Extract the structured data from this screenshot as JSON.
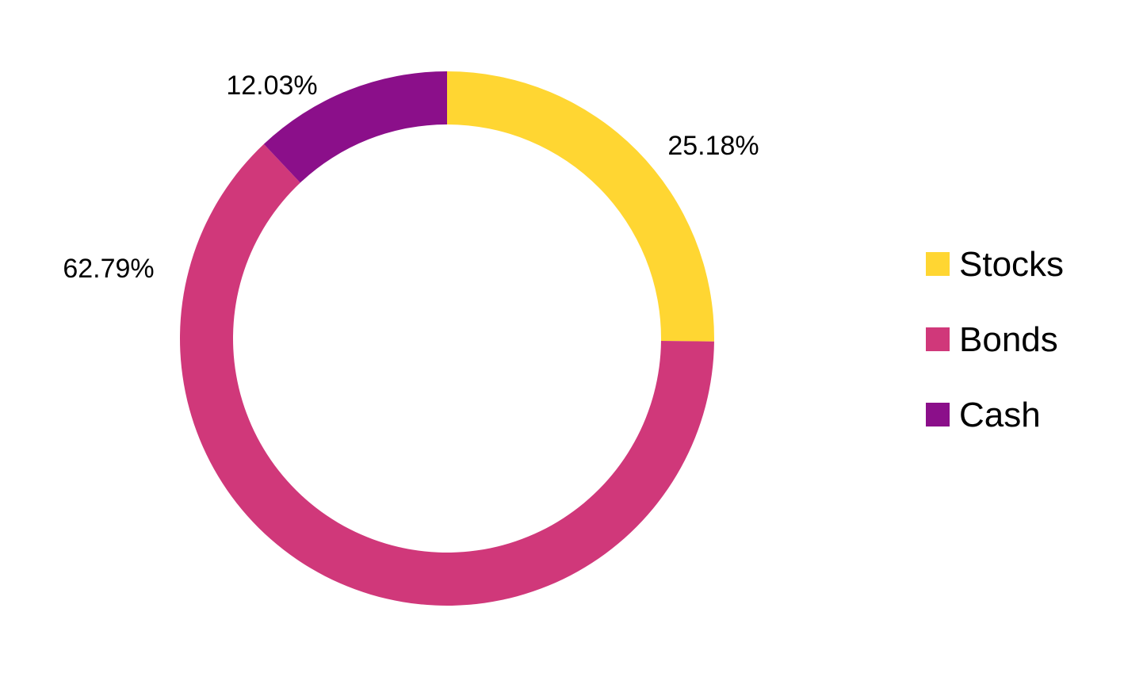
{
  "chart_data": {
    "type": "pie",
    "variant": "donut",
    "title": "",
    "series": [
      {
        "name": "Stocks",
        "value": 25.18,
        "label": "25.18%",
        "color": "#FFD632"
      },
      {
        "name": "Bonds",
        "value": 62.79,
        "label": "62.79%",
        "color": "#D0387A"
      },
      {
        "name": "Cash",
        "value": 12.03,
        "label": "12.03%",
        "color": "#8B0F8A"
      }
    ],
    "legend": {
      "position": "right"
    }
  }
}
